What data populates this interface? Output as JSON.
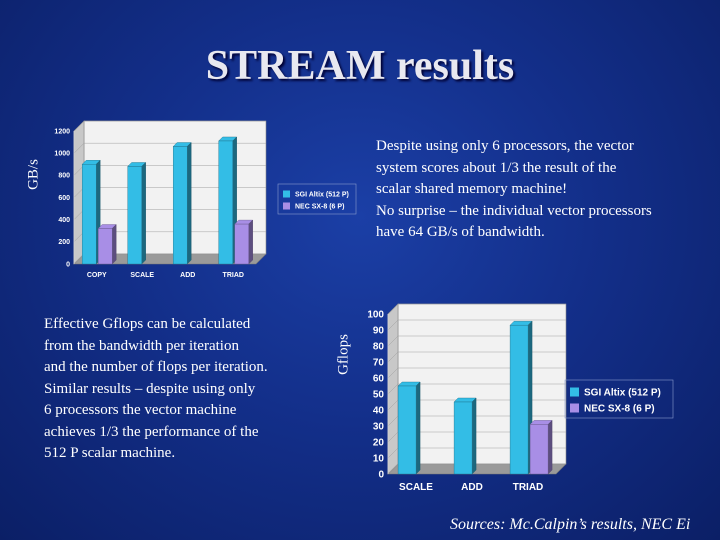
{
  "title": "STREAM results",
  "paragraph_top": [
    "Despite using only 6 processors, the vector",
    "system scores about 1/3 the result of the",
    "scalar shared memory machine!",
    "No surprise – the individual vector processors",
    "have 64 GB/s of bandwidth."
  ],
  "paragraph_bottom": [
    "Effective Gflops can be calculated",
    "from the bandwidth per iteration",
    "and the number of flops per iteration.",
    "Similar results – despite using only",
    "6 processors the vector machine",
    "achieves 1/3 the performance of the",
    "512 P scalar machine."
  ],
  "source_text": "Sources: Mc.Calpin’s results, NEC Ei",
  "colors": {
    "series1": "#33bde6",
    "series2": "#a88ee6"
  },
  "chart_data": [
    {
      "type": "bar",
      "ylabel": "GB/s",
      "categories": [
        "COPY",
        "SCALE",
        "ADD",
        "TRIAD"
      ],
      "yticks": [
        0,
        200,
        400,
        600,
        800,
        1000,
        1200
      ],
      "ylim": [
        0,
        1200
      ],
      "grid": true,
      "legend_position": "right",
      "series": [
        {
          "name": "SGI Altix (512 P)",
          "values": [
            900,
            880,
            1060,
            1110
          ]
        },
        {
          "name": "NEC SX-8 (6 P)",
          "values": [
            320,
            0,
            0,
            360
          ]
        }
      ]
    },
    {
      "type": "bar",
      "ylabel": "Gflops",
      "categories": [
        "SCALE",
        "ADD",
        "TRIAD"
      ],
      "yticks": [
        0,
        10,
        20,
        30,
        40,
        50,
        60,
        70,
        80,
        90,
        100
      ],
      "ylim": [
        0,
        100
      ],
      "grid": true,
      "legend_position": "right",
      "series": [
        {
          "name": "SGI Altix (512 P)",
          "values": [
            55,
            45,
            93
          ]
        },
        {
          "name": "NEC SX-8 (6 P)",
          "values": [
            0,
            0,
            31
          ]
        }
      ]
    }
  ]
}
